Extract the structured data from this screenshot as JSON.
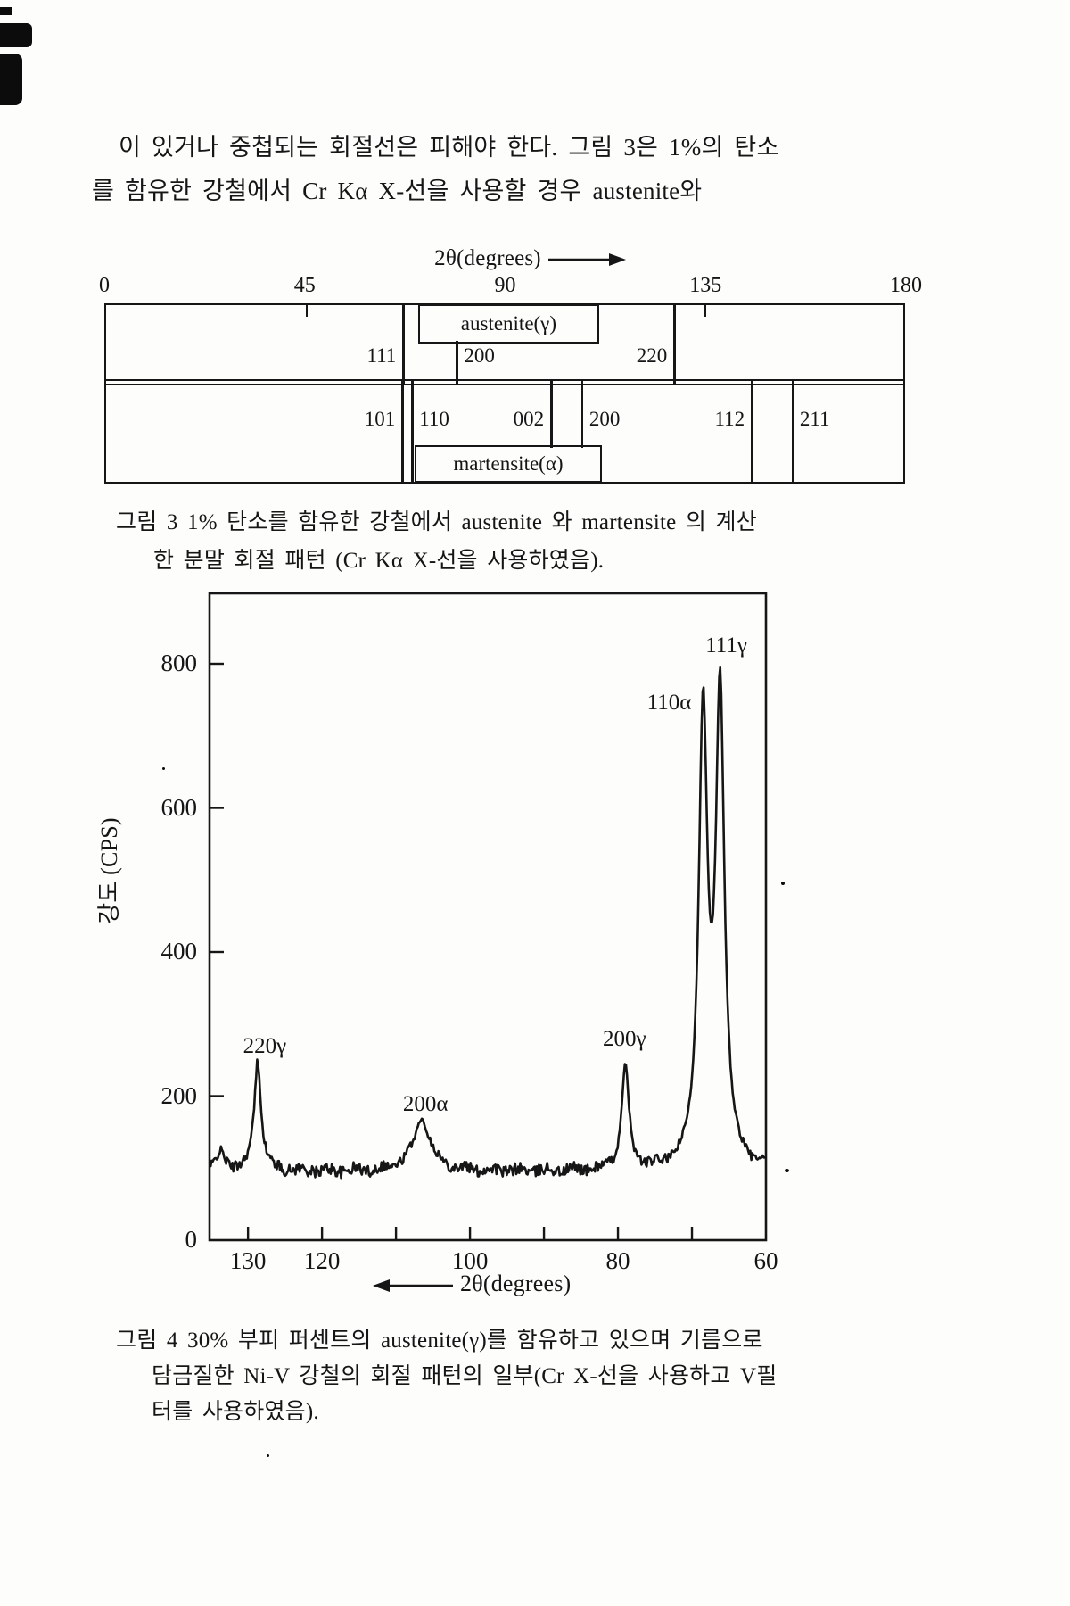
{
  "page": {
    "ink": "#161616",
    "background": "#fdfdfb",
    "intro_lines": [
      "이 있거나 중첩되는 회절선은 피해야 한다. 그림 3은 1%의 탄소",
      "를 함유한 강철에서 Cr Kα X-선을 사용할 경우 austenite와"
    ]
  },
  "figure3": {
    "axis_title": "2θ(degrees)",
    "axis_deg_min": 0,
    "axis_deg_max": 180,
    "axis_ticks": [
      {
        "label": "0",
        "deg": 0
      },
      {
        "label": "45",
        "deg": 45
      },
      {
        "label": "90",
        "deg": 90
      },
      {
        "label": "135",
        "deg": 135
      },
      {
        "label": "180",
        "deg": 180
      }
    ],
    "top_edge_tick_degs": [
      45,
      135
    ],
    "bands": {
      "austenite": {
        "label": "austenite(γ)",
        "label_box_deg": [
          70.5,
          110.5
        ],
        "lines": [
          {
            "hkl": "111",
            "deg": 66.9,
            "side": "left",
            "full": true
          },
          {
            "hkl": "200",
            "deg": 79.0,
            "side": "right",
            "full": false
          },
          {
            "hkl": "220",
            "deg": 128.1,
            "side": "left",
            "full": true
          }
        ]
      },
      "martensite": {
        "label": "martensite(α)",
        "label_box_deg": [
          69.7,
          111.1
        ],
        "lines": [
          {
            "hkl": "101",
            "deg": 66.7,
            "side": "left",
            "full": true
          },
          {
            "hkl": "110",
            "deg": 68.9,
            "side": "right",
            "full": true
          },
          {
            "hkl": "002",
            "deg": 100.3,
            "side": "left",
            "full": false
          },
          {
            "hkl": "200",
            "deg": 107.3,
            "side": "right",
            "full": false
          },
          {
            "hkl": "112",
            "deg": 145.6,
            "side": "left",
            "full": true
          },
          {
            "hkl": "211",
            "deg": 154.8,
            "side": "right",
            "full": true
          }
        ]
      }
    },
    "caption_lines": [
      "그림 3  1% 탄소를 함유한 강철에서 austenite 와 martensite 의 계산",
      "한 분말 회절 패턴 (Cr Kα X-선을 사용하였음)."
    ]
  },
  "chart_data": {
    "type": "line",
    "title": "",
    "xlabel": "2θ(degrees)",
    "ylabel": "강도 (CPS)",
    "x_reversed": true,
    "xlim": [
      60,
      135.2
    ],
    "ylim": [
      0,
      900
    ],
    "grid": false,
    "x_tick_labels": [
      {
        "label": "130",
        "deg": 130
      },
      {
        "label": "120",
        "deg": 120
      },
      {
        "label": "100",
        "deg": 100
      },
      {
        "label": "80",
        "deg": 80
      },
      {
        "label": "60",
        "deg": 60
      }
    ],
    "x_minor_tick_degs": [
      130,
      120,
      110,
      100,
      90,
      80,
      70
    ],
    "y_ticks": [
      {
        "label": "0",
        "cps": 0
      },
      {
        "label": "200",
        "cps": 200
      },
      {
        "label": "400",
        "cps": 400
      },
      {
        "label": "600",
        "cps": 600
      },
      {
        "label": "800",
        "cps": 800
      }
    ],
    "baseline_cps": 95,
    "noise_cps": 7,
    "peaks": [
      {
        "label": "220γ",
        "two_theta": 128.7,
        "peak_cps": 240,
        "width_deg": 0.6
      },
      {
        "label": "200α",
        "two_theta": 106.5,
        "peak_cps": 165,
        "width_deg": 1.5
      },
      {
        "label": "200γ",
        "two_theta": 79.0,
        "peak_cps": 240,
        "width_deg": 0.6
      },
      {
        "label": "110α",
        "two_theta": 68.5,
        "peak_cps": 775,
        "width_deg": 0.7
      },
      {
        "label": "111γ",
        "two_theta": 66.2,
        "peak_cps": 800,
        "width_deg": 0.7
      }
    ],
    "minor_features": [
      {
        "two_theta": 133.7,
        "cps": 120
      }
    ],
    "valley_between_110a_and_111g_cps": 430
  },
  "figure4": {
    "caption_lines": [
      "그림 4  30% 부피 퍼센트의 austenite(γ)를 함유하고 있으며 기름으로",
      "담금질한 Ni-V 강철의 회절 패턴의 일부(Cr X-선을 사용하고 V필",
      "터를 사용하였음)."
    ]
  }
}
